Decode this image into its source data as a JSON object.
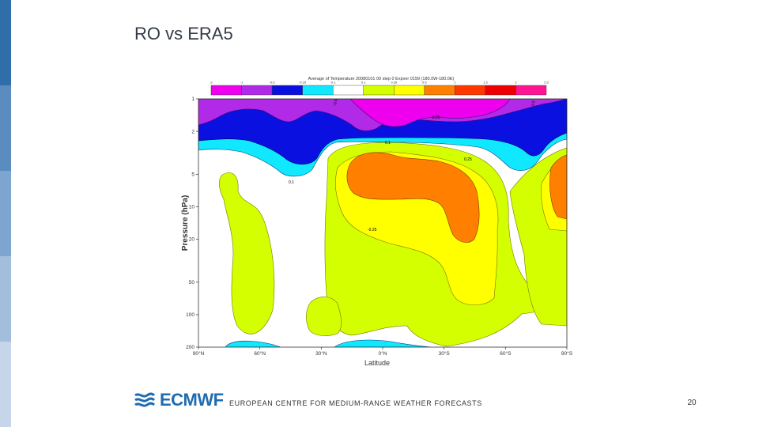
{
  "slide": {
    "title": "RO vs ERA5",
    "footer_text": "EUROPEAN CENTRE FOR MEDIUM-RANGE WEATHER FORECASTS",
    "page_number": "20",
    "logo_text": "ECMWF"
  },
  "chart_data": {
    "type": "heatmap",
    "title": "Average of Temperature 20080101 00 step 0 Expver 0199 (180.0W-180.0E)",
    "xlabel": "Latitude",
    "ylabel": "Pressure (hPa)",
    "x_ticks": [
      "90°N",
      "60°N",
      "30°N",
      "0°N",
      "30°S",
      "60°S",
      "90°S"
    ],
    "y_ticks": [
      "1",
      "2",
      "5",
      "10",
      "20",
      "50",
      "100",
      "200"
    ],
    "y_scale": "log",
    "colorbar": {
      "ticks": [
        "-2",
        "-1",
        "-0.5",
        "-0.25",
        "-0.1",
        "0.1",
        "0.25",
        "0.5",
        "1",
        "1.5",
        "2",
        "2.5"
      ],
      "colors": [
        "#ee00ee",
        "#b02ae8",
        "#0a10e0",
        "#10e8ff",
        "#ffffff",
        "#d4ff00",
        "#ffff00",
        "#ff8000",
        "#ff3800",
        "#ee0000",
        "#ff1493"
      ]
    },
    "contour_labels": [
      "-0.5",
      "-0.25",
      "0.1",
      "0.25",
      "-0.5",
      "-0.25",
      "0.1"
    ]
  }
}
